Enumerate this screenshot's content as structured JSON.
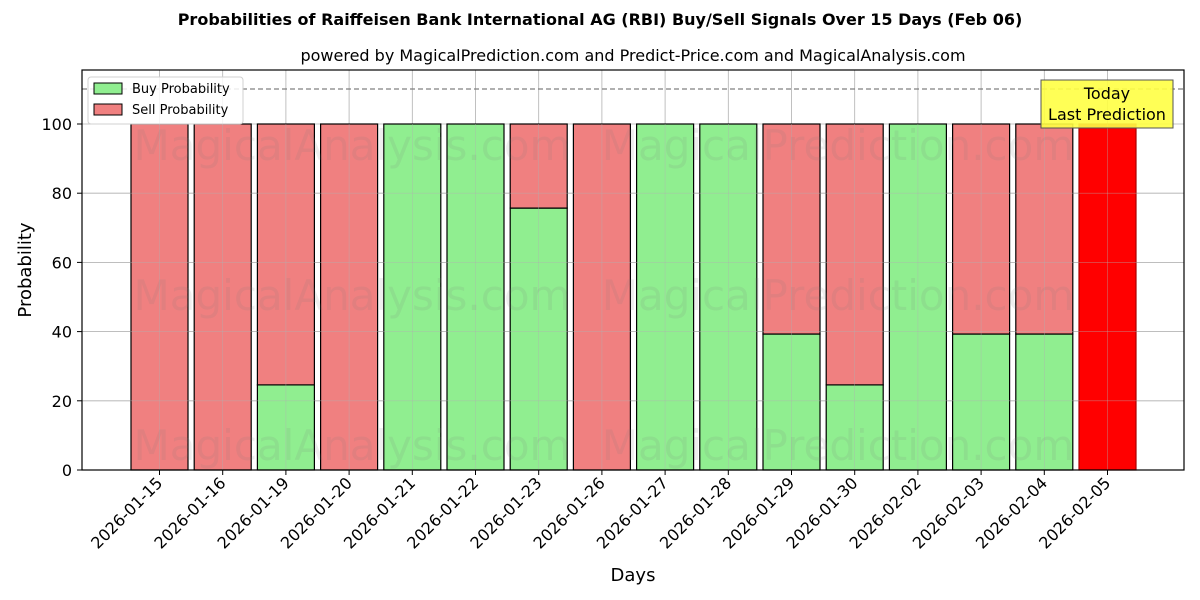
{
  "header": {
    "title": "Probabilities of Raiffeisen Bank International AG (RBI) Buy/Sell Signals Over 15 Days (Feb 06)",
    "subtitle": "powered by MagicalPrediction.com and Predict-Price.com and MagicalAnalysis.com"
  },
  "legend": {
    "buy_label": "Buy Probability",
    "sell_label": "Sell Probability"
  },
  "annotation": {
    "line1": "Today",
    "line2": "Last Prediction"
  },
  "watermarks": [
    "MagicalAnalysis.com",
    "MagicalPrediction.com"
  ],
  "colors": {
    "buy": "#90ee90",
    "sell": "#f08080",
    "today_sell": "#ff0000",
    "annotation_bg": "#ffff44",
    "grid": "#b0b0b0"
  },
  "chart_data": {
    "type": "bar",
    "stacked": true,
    "title": "Probabilities of Raiffeisen Bank International AG (RBI) Buy/Sell Signals Over 15 Days (Feb 06)",
    "subtitle": "powered by MagicalPrediction.com and Predict-Price.com and MagicalAnalysis.com",
    "xlabel": "Days",
    "ylabel": "Probability",
    "ylim": [
      0,
      115
    ],
    "yticks": [
      0,
      20,
      40,
      60,
      80,
      100
    ],
    "grid": true,
    "legend_position": "upper left",
    "reference_line": {
      "y": 110,
      "style": "dashed"
    },
    "categories": [
      "2026-01-15",
      "2026-01-16",
      "2026-01-19",
      "2026-01-20",
      "2026-01-21",
      "2026-01-22",
      "2026-01-23",
      "2026-01-26",
      "2026-01-27",
      "2026-01-28",
      "2026-01-29",
      "2026-01-30",
      "2026-02-02",
      "2026-02-03",
      "2026-02-04",
      "2026-02-05"
    ],
    "series": [
      {
        "name": "Buy Probability",
        "values": [
          0,
          0,
          24.6,
          0,
          100,
          100,
          75.7,
          0,
          100,
          100,
          39.3,
          24.6,
          100,
          39.3,
          39.3,
          0
        ]
      },
      {
        "name": "Sell Probability",
        "values": [
          100,
          100,
          75.4,
          100,
          0,
          0,
          24.3,
          100,
          0,
          0,
          60.7,
          75.4,
          0,
          60.7,
          60.7,
          100
        ]
      }
    ],
    "highlight": {
      "category": "2026-02-05",
      "label": "Today\nLast Prediction"
    }
  }
}
